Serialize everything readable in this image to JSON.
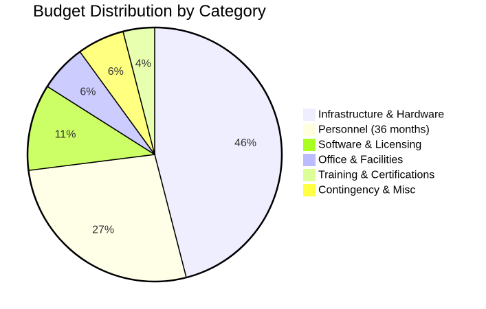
{
  "chart_data": {
    "type": "pie",
    "title": "Budget Distribution by Category",
    "categories": [
      "Infrastructure & Hardware",
      "Personnel (36 months)",
      "Software & Licensing",
      "Office & Facilities",
      "Training & Certifications",
      "Contingency & Misc"
    ],
    "values": [
      46,
      27,
      11,
      6,
      4,
      6
    ],
    "labels": [
      "46%",
      "27%",
      "11%",
      "6%",
      "4%",
      "6%"
    ],
    "colors": [
      "#eeeeff",
      "#ffffe8",
      "#ccff66",
      "#ccccff",
      "#e8ffb0",
      "#ffff80"
    ],
    "legend_colors": [
      "#eeeeff",
      "#ffffe0",
      "#aaff22",
      "#bbbbff",
      "#ddff99",
      "#ffff44"
    ],
    "slice_order": [
      0,
      1,
      2,
      3,
      5,
      4
    ],
    "start": "top",
    "direction": "clockwise",
    "legend_position": "right"
  }
}
